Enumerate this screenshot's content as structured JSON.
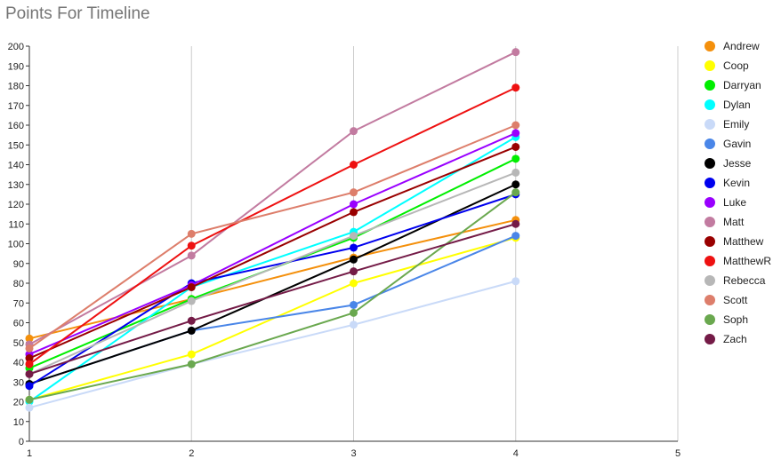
{
  "chart_data": {
    "type": "line",
    "title": "Points For Timeline",
    "xlabel": "",
    "ylabel": "",
    "x": [
      1,
      2,
      3,
      4
    ],
    "xlim": [
      1,
      5
    ],
    "xticks": [
      1,
      2,
      3,
      4,
      5
    ],
    "ylim": [
      0,
      200
    ],
    "yticks": [
      0,
      10,
      20,
      30,
      40,
      50,
      60,
      70,
      80,
      90,
      100,
      110,
      120,
      130,
      140,
      150,
      160,
      170,
      180,
      190,
      200
    ],
    "grid": "vertical",
    "legend_position": "right",
    "series": [
      {
        "name": "Andrew",
        "color": "#f4900c",
        "values": [
          52,
          72,
          93,
          112
        ]
      },
      {
        "name": "Coop",
        "color": "#ffff00",
        "values": [
          21,
          44,
          80,
          103
        ]
      },
      {
        "name": "Darryan",
        "color": "#00ee00",
        "values": [
          37,
          72,
          103,
          143
        ]
      },
      {
        "name": "Dylan",
        "color": "#00ffff",
        "values": [
          20,
          78,
          106,
          154
        ]
      },
      {
        "name": "Emily",
        "color": "#c9daf8",
        "values": [
          17,
          39,
          59,
          81
        ]
      },
      {
        "name": "Gavin",
        "color": "#4a86e8",
        "values": [
          29,
          56,
          69,
          104
        ]
      },
      {
        "name": "Jesse",
        "color": "#000000",
        "values": [
          29,
          56,
          92,
          130
        ]
      },
      {
        "name": "Kevin",
        "color": "#0000ee",
        "values": [
          28,
          80,
          98,
          125
        ]
      },
      {
        "name": "Luke",
        "color": "#9900ff",
        "values": [
          44,
          79,
          120,
          156
        ]
      },
      {
        "name": "Matt",
        "color": "#c27ba0",
        "values": [
          49,
          94,
          157,
          197
        ]
      },
      {
        "name": "Matthew",
        "color": "#990000",
        "values": [
          42,
          78,
          116,
          149
        ]
      },
      {
        "name": "MatthewR",
        "color": "#ee1111",
        "values": [
          39,
          99,
          140,
          179
        ]
      },
      {
        "name": "Rebecca",
        "color": "#b7b7b7",
        "values": [
          34,
          71,
          104,
          136
        ]
      },
      {
        "name": "Scott",
        "color": "#dd7e6b",
        "values": [
          47,
          105,
          126,
          160
        ]
      },
      {
        "name": "Soph",
        "color": "#6aa84f",
        "values": [
          21,
          39,
          65,
          126
        ]
      },
      {
        "name": "Zach",
        "color": "#741b47",
        "values": [
          34,
          61,
          86,
          110
        ]
      }
    ]
  }
}
